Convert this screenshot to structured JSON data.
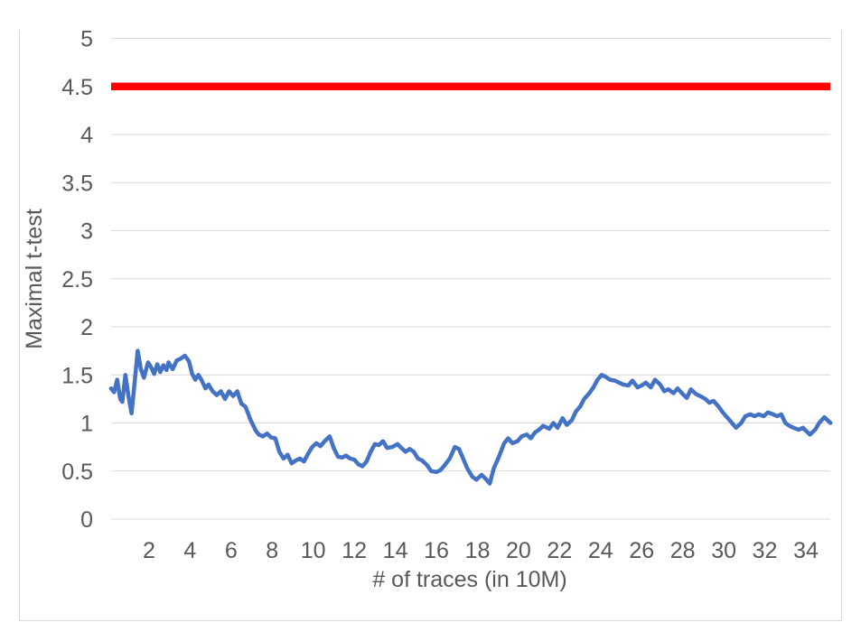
{
  "chart_data": {
    "type": "line",
    "title": "",
    "xlabel": "# of traces (in 10M)",
    "ylabel": "Maximal t-test",
    "xlim": [
      0,
      35.2
    ],
    "ylim": [
      0,
      5
    ],
    "xticks": [
      2,
      4,
      6,
      8,
      10,
      12,
      14,
      16,
      18,
      20,
      22,
      24,
      26,
      28,
      30,
      32,
      34
    ],
    "yticks": [
      0,
      0.5,
      1,
      1.5,
      2,
      2.5,
      3,
      3.5,
      4,
      4.5,
      5
    ],
    "ytick_labels": [
      "0",
      "0.5",
      "1",
      "1.5",
      "2",
      "2.5",
      "3",
      "3.5",
      "4",
      "4.5",
      "5"
    ],
    "grid": "horizontal",
    "legend": "none",
    "colors": {
      "threshold": "#FF0000",
      "t_test_line": "#4472C4",
      "gridline": "#D9D9D9",
      "axis_text": "#595959",
      "frame_border": "#D9D9D9"
    },
    "series": [
      {
        "name": "threshold",
        "type": "hline",
        "value": 4.5,
        "color": "#FF0000",
        "stroke_width": 8.5
      },
      {
        "name": "maximal-t-test",
        "type": "line",
        "color": "#4472C4",
        "stroke_width": 4.5,
        "points": [
          [
            0.15,
            1.36
          ],
          [
            0.3,
            1.32
          ],
          [
            0.45,
            1.45
          ],
          [
            0.6,
            1.25
          ],
          [
            0.7,
            1.22
          ],
          [
            0.85,
            1.5
          ],
          [
            1.0,
            1.28
          ],
          [
            1.15,
            1.1
          ],
          [
            1.3,
            1.42
          ],
          [
            1.45,
            1.75
          ],
          [
            1.6,
            1.56
          ],
          [
            1.75,
            1.47
          ],
          [
            1.95,
            1.63
          ],
          [
            2.1,
            1.58
          ],
          [
            2.25,
            1.51
          ],
          [
            2.4,
            1.61
          ],
          [
            2.55,
            1.53
          ],
          [
            2.7,
            1.6
          ],
          [
            2.85,
            1.55
          ],
          [
            2.95,
            1.63
          ],
          [
            3.15,
            1.56
          ],
          [
            3.35,
            1.65
          ],
          [
            3.55,
            1.67
          ],
          [
            3.75,
            1.7
          ],
          [
            3.95,
            1.64
          ],
          [
            4.1,
            1.51
          ],
          [
            4.25,
            1.45
          ],
          [
            4.4,
            1.5
          ],
          [
            4.55,
            1.45
          ],
          [
            4.75,
            1.36
          ],
          [
            4.9,
            1.4
          ],
          [
            5.1,
            1.33
          ],
          [
            5.3,
            1.29
          ],
          [
            5.5,
            1.33
          ],
          [
            5.7,
            1.25
          ],
          [
            5.9,
            1.33
          ],
          [
            6.1,
            1.28
          ],
          [
            6.3,
            1.33
          ],
          [
            6.5,
            1.2
          ],
          [
            6.7,
            1.17
          ],
          [
            6.95,
            1.03
          ],
          [
            7.2,
            0.92
          ],
          [
            7.35,
            0.88
          ],
          [
            7.55,
            0.86
          ],
          [
            7.75,
            0.89
          ],
          [
            7.95,
            0.85
          ],
          [
            8.15,
            0.84
          ],
          [
            8.35,
            0.7
          ],
          [
            8.55,
            0.63
          ],
          [
            8.75,
            0.67
          ],
          [
            8.95,
            0.58
          ],
          [
            9.15,
            0.61
          ],
          [
            9.35,
            0.63
          ],
          [
            9.55,
            0.6
          ],
          [
            9.75,
            0.68
          ],
          [
            9.95,
            0.75
          ],
          [
            10.15,
            0.79
          ],
          [
            10.35,
            0.76
          ],
          [
            10.6,
            0.82
          ],
          [
            10.8,
            0.86
          ],
          [
            11.0,
            0.74
          ],
          [
            11.2,
            0.65
          ],
          [
            11.4,
            0.64
          ],
          [
            11.6,
            0.66
          ],
          [
            11.8,
            0.63
          ],
          [
            12.0,
            0.62
          ],
          [
            12.2,
            0.57
          ],
          [
            12.4,
            0.55
          ],
          [
            12.6,
            0.6
          ],
          [
            12.8,
            0.7
          ],
          [
            13.0,
            0.78
          ],
          [
            13.2,
            0.77
          ],
          [
            13.4,
            0.81
          ],
          [
            13.6,
            0.74
          ],
          [
            13.85,
            0.75
          ],
          [
            14.1,
            0.78
          ],
          [
            14.3,
            0.74
          ],
          [
            14.5,
            0.7
          ],
          [
            14.7,
            0.73
          ],
          [
            14.9,
            0.7
          ],
          [
            15.1,
            0.63
          ],
          [
            15.3,
            0.61
          ],
          [
            15.55,
            0.56
          ],
          [
            15.75,
            0.5
          ],
          [
            16.0,
            0.49
          ],
          [
            16.2,
            0.51
          ],
          [
            16.4,
            0.56
          ],
          [
            16.65,
            0.63
          ],
          [
            16.9,
            0.75
          ],
          [
            17.1,
            0.73
          ],
          [
            17.3,
            0.63
          ],
          [
            17.5,
            0.53
          ],
          [
            17.75,
            0.44
          ],
          [
            17.95,
            0.41
          ],
          [
            18.2,
            0.46
          ],
          [
            18.4,
            0.42
          ],
          [
            18.6,
            0.37
          ],
          [
            18.8,
            0.53
          ],
          [
            19.05,
            0.65
          ],
          [
            19.3,
            0.79
          ],
          [
            19.5,
            0.84
          ],
          [
            19.7,
            0.79
          ],
          [
            19.95,
            0.81
          ],
          [
            20.15,
            0.86
          ],
          [
            20.4,
            0.88
          ],
          [
            20.6,
            0.84
          ],
          [
            20.8,
            0.9
          ],
          [
            21.0,
            0.93
          ],
          [
            21.2,
            0.97
          ],
          [
            21.5,
            0.94
          ],
          [
            21.7,
            1.0
          ],
          [
            21.9,
            0.95
          ],
          [
            22.15,
            1.05
          ],
          [
            22.35,
            0.98
          ],
          [
            22.6,
            1.03
          ],
          [
            22.8,
            1.12
          ],
          [
            23.0,
            1.17
          ],
          [
            23.2,
            1.25
          ],
          [
            23.45,
            1.31
          ],
          [
            23.65,
            1.37
          ],
          [
            23.85,
            1.45
          ],
          [
            24.05,
            1.5
          ],
          [
            24.25,
            1.48
          ],
          [
            24.45,
            1.45
          ],
          [
            24.7,
            1.44
          ],
          [
            24.9,
            1.42
          ],
          [
            25.1,
            1.4
          ],
          [
            25.35,
            1.39
          ],
          [
            25.55,
            1.44
          ],
          [
            25.8,
            1.37
          ],
          [
            26.0,
            1.39
          ],
          [
            26.2,
            1.42
          ],
          [
            26.45,
            1.37
          ],
          [
            26.65,
            1.45
          ],
          [
            26.9,
            1.4
          ],
          [
            27.1,
            1.33
          ],
          [
            27.3,
            1.35
          ],
          [
            27.55,
            1.31
          ],
          [
            27.75,
            1.36
          ],
          [
            28.0,
            1.3
          ],
          [
            28.2,
            1.26
          ],
          [
            28.4,
            1.35
          ],
          [
            28.65,
            1.3
          ],
          [
            28.85,
            1.28
          ],
          [
            29.1,
            1.25
          ],
          [
            29.3,
            1.21
          ],
          [
            29.5,
            1.23
          ],
          [
            29.75,
            1.17
          ],
          [
            29.95,
            1.11
          ],
          [
            30.2,
            1.05
          ],
          [
            30.4,
            1.0
          ],
          [
            30.6,
            0.95
          ],
          [
            30.85,
            1.0
          ],
          [
            31.05,
            1.07
          ],
          [
            31.3,
            1.09
          ],
          [
            31.5,
            1.07
          ],
          [
            31.7,
            1.09
          ],
          [
            31.95,
            1.07
          ],
          [
            32.15,
            1.11
          ],
          [
            32.4,
            1.09
          ],
          [
            32.6,
            1.07
          ],
          [
            32.8,
            1.09
          ],
          [
            33.0,
            1.0
          ],
          [
            33.2,
            0.97
          ],
          [
            33.4,
            0.95
          ],
          [
            33.65,
            0.93
          ],
          [
            33.85,
            0.95
          ],
          [
            34.05,
            0.91
          ],
          [
            34.2,
            0.88
          ],
          [
            34.45,
            0.93
          ],
          [
            34.65,
            1.0
          ],
          [
            34.9,
            1.06
          ],
          [
            35.05,
            1.03
          ],
          [
            35.2,
            1.0
          ]
        ]
      }
    ]
  }
}
